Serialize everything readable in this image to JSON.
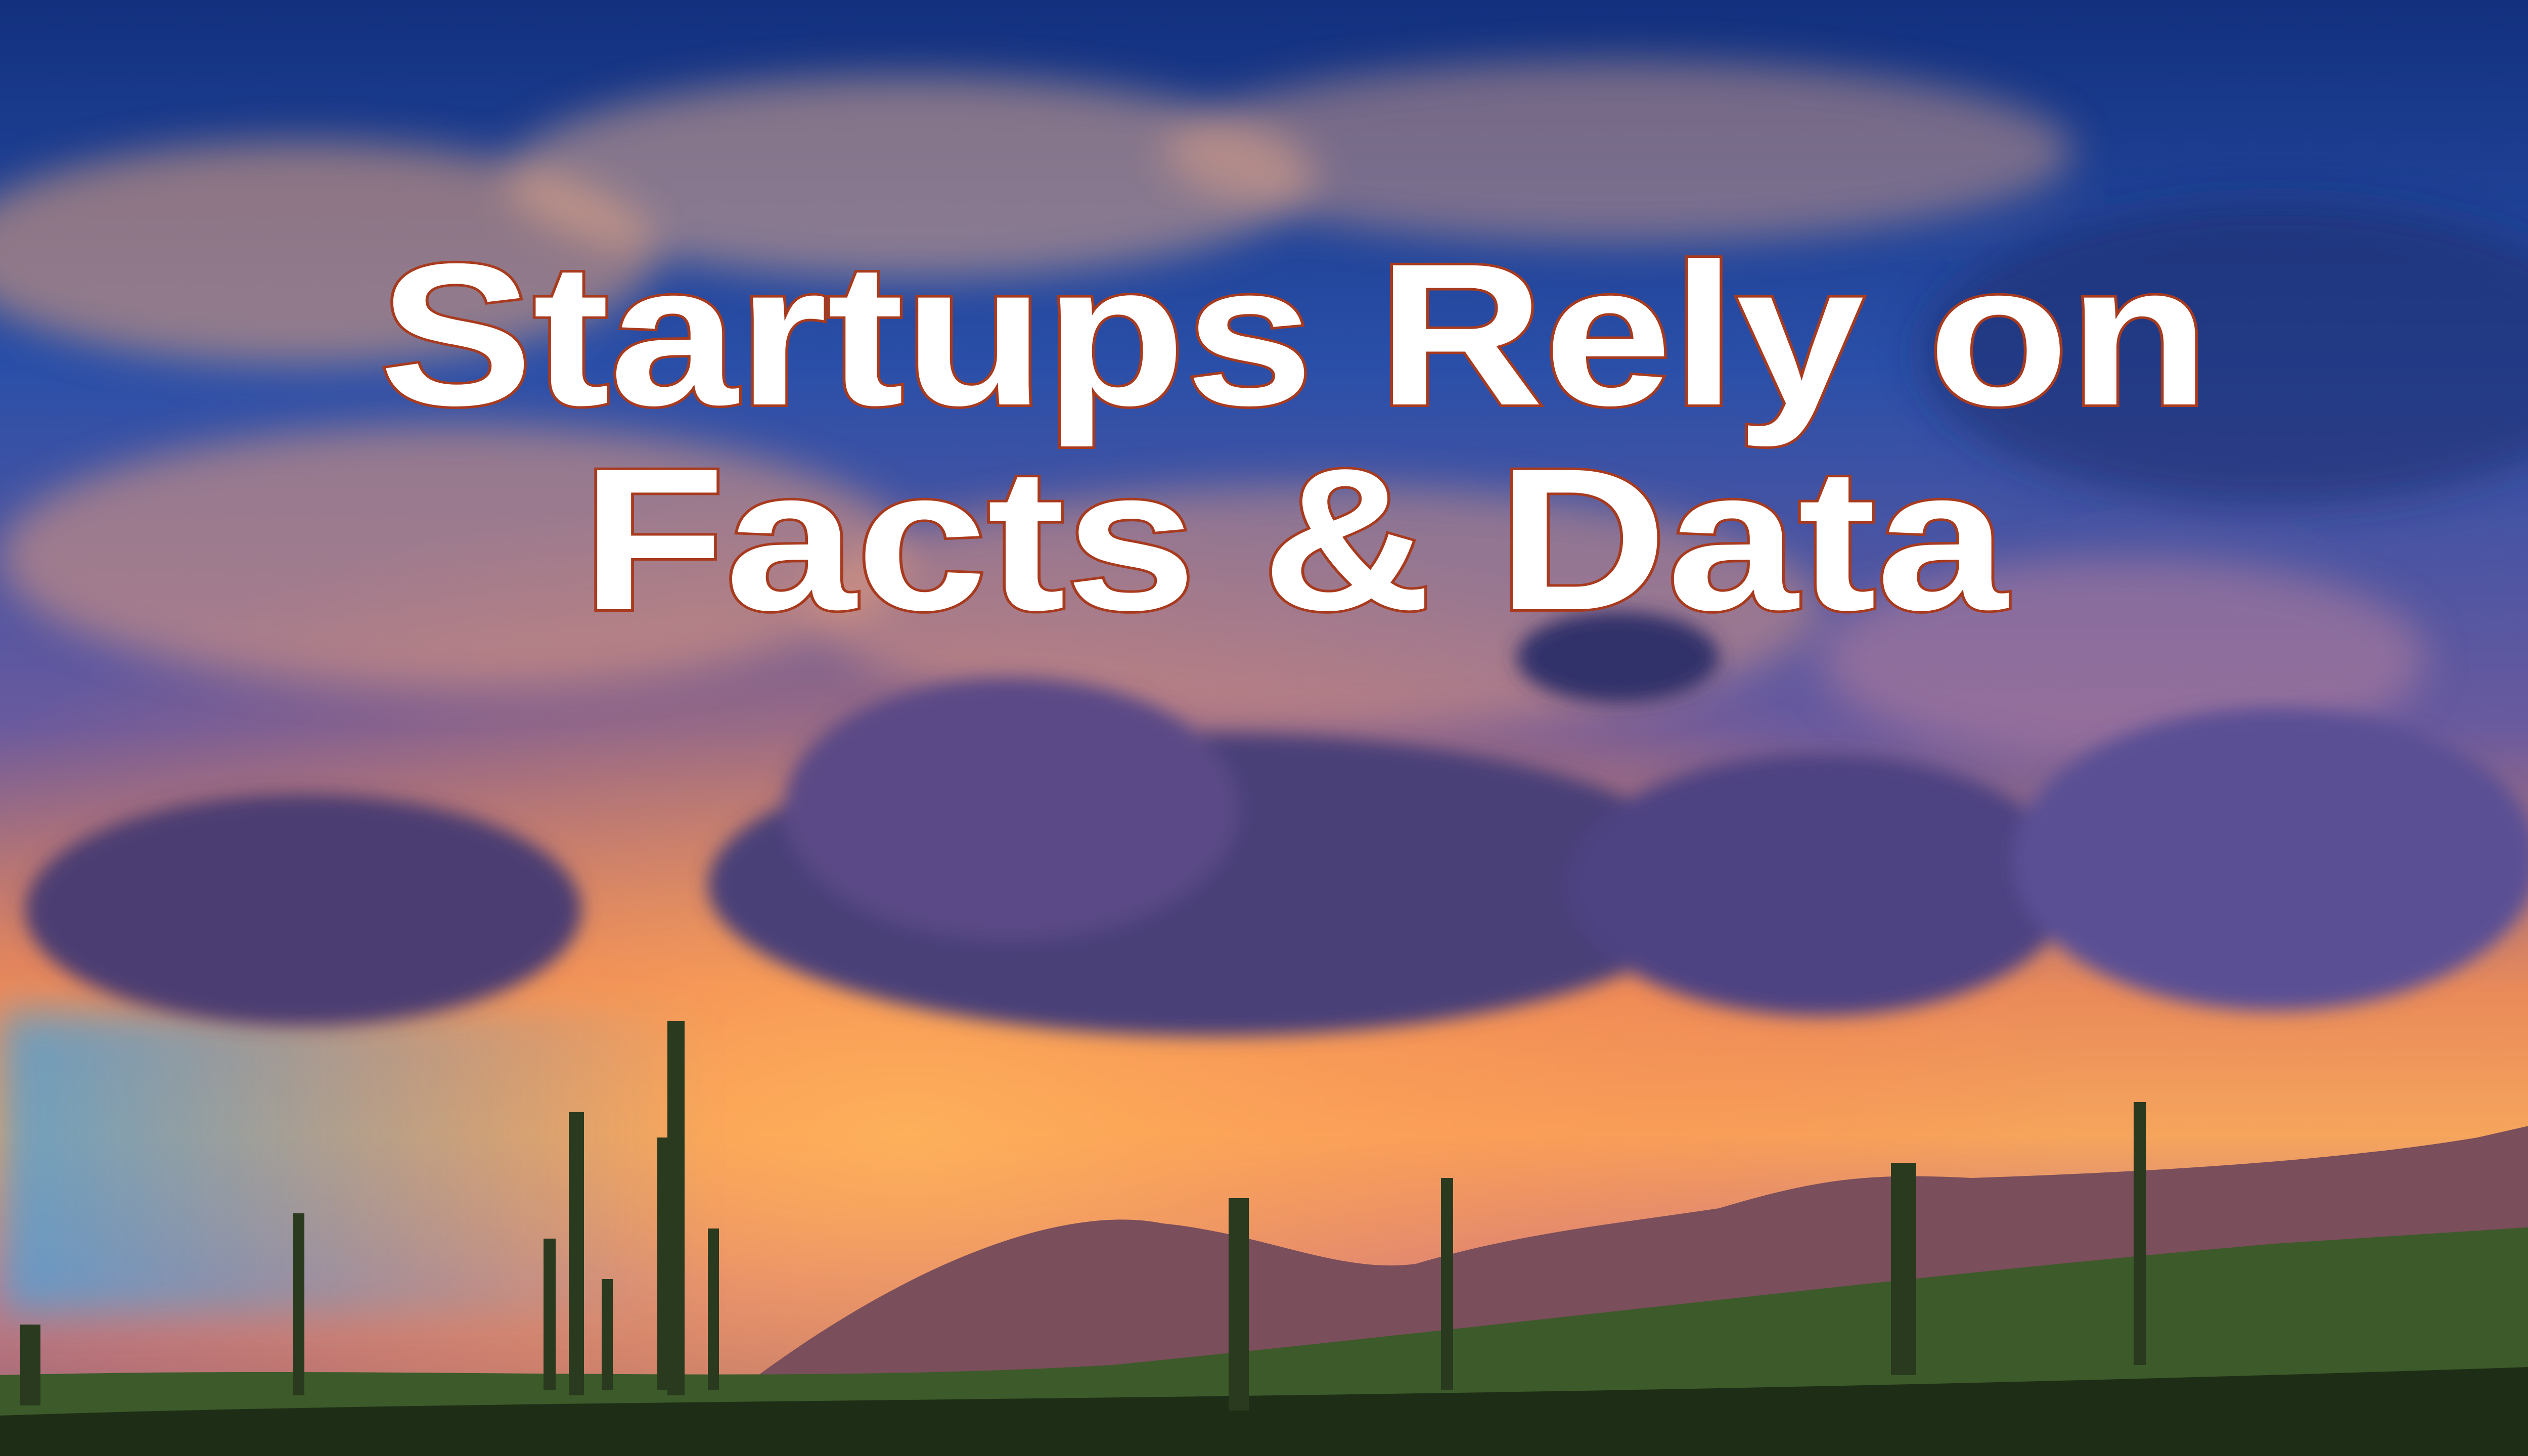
{
  "slide": {
    "title_lines": [
      "Startups Rely on",
      "Facts & Data"
    ]
  }
}
